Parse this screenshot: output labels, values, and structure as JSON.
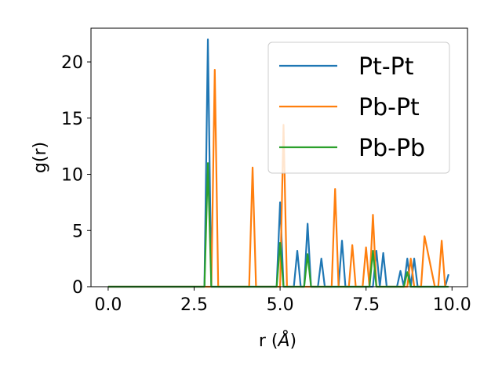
{
  "chart_data": {
    "type": "line",
    "title": "",
    "xlabel_prefix": "r (",
    "xlabel_symbol": "Å",
    "xlabel_suffix": ")",
    "ylabel": "g(r)",
    "xlim": [
      -0.5,
      10.45
    ],
    "ylim": [
      0,
      23
    ],
    "xticks": [
      0.0,
      2.5,
      5.0,
      7.5,
      10.0
    ],
    "xtick_labels": [
      "0.0",
      "2.5",
      "5.0",
      "7.5",
      "10.0"
    ],
    "yticks": [
      0,
      5,
      10,
      15,
      20
    ],
    "ytick_labels": [
      "0",
      "5",
      "10",
      "15",
      "20"
    ],
    "grid": false,
    "legend_position": "top-right",
    "series": [
      {
        "name": "Pt-Pt",
        "color": "#1f77b4",
        "x": [
          0.0,
          2.8,
          2.9,
          3.0,
          4.9,
          5.0,
          5.1,
          5.2,
          5.3,
          5.4,
          5.5,
          5.6,
          5.7,
          5.8,
          5.9,
          6.0,
          6.1,
          6.2,
          6.3,
          6.6,
          6.7,
          6.8,
          6.9,
          7.7,
          7.8,
          7.9,
          8.0,
          8.1,
          8.4,
          8.5,
          8.6,
          8.7,
          8.8,
          8.9,
          9.0,
          9.1,
          9.8,
          9.9
        ],
        "y": [
          0,
          0,
          22.0,
          0,
          0,
          7.5,
          0,
          0,
          0,
          0,
          3.2,
          0,
          0,
          5.6,
          0,
          0,
          0,
          2.5,
          0,
          0,
          0,
          4.1,
          0,
          0,
          3.2,
          0,
          3.0,
          0,
          0,
          1.4,
          0,
          2.5,
          0,
          2.5,
          0,
          0,
          0,
          1.1
        ]
      },
      {
        "name": "Pb-Pt",
        "color": "#ff7f0e",
        "x": [
          0.0,
          3.0,
          3.1,
          3.2,
          4.1,
          4.2,
          4.3,
          5.0,
          5.1,
          5.2,
          6.5,
          6.6,
          6.7,
          7.0,
          7.1,
          7.2,
          7.3,
          7.4,
          7.5,
          7.6,
          7.7,
          7.8,
          8.6,
          8.7,
          8.8,
          8.9,
          9.0,
          9.1,
          9.2,
          9.5,
          9.6,
          9.7,
          9.8
        ],
        "y": [
          0,
          0,
          19.3,
          0,
          0,
          10.6,
          0,
          0,
          14.4,
          0,
          0,
          8.7,
          0,
          0,
          3.7,
          0,
          0,
          0,
          3.5,
          0,
          6.4,
          0,
          0,
          0,
          2.5,
          0,
          0,
          0,
          4.5,
          0,
          0,
          4.1,
          0
        ]
      },
      {
        "name": "Pb-Pb",
        "color": "#2ca02c",
        "x": [
          0.0,
          2.8,
          2.9,
          3.0,
          4.9,
          5.0,
          5.1,
          5.7,
          5.8,
          5.9,
          7.6,
          7.7,
          7.8,
          8.6,
          8.7,
          8.8,
          9.9
        ],
        "y": [
          0,
          0,
          11.0,
          0,
          0,
          3.9,
          0,
          0,
          2.9,
          0,
          0,
          3.2,
          0,
          0,
          1.3,
          0,
          0
        ]
      }
    ]
  }
}
